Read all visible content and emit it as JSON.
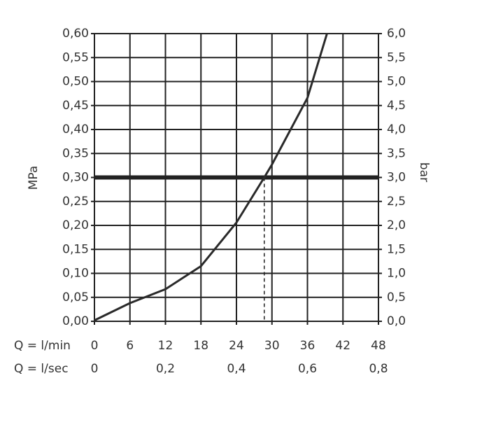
{
  "chart_data": {
    "type": "line",
    "x_label": "Q = l/min",
    "x2_label": "Q = l/sec",
    "y_label": "MPa",
    "y2_label": "bar",
    "x": [
      0,
      6,
      12,
      18,
      24,
      28.7,
      30,
      36,
      39.3
    ],
    "series": [
      {
        "color": "#2a2a2a",
        "values": [
          0.002,
          0.038,
          0.067,
          0.115,
          0.206,
          0.3,
          0.327,
          0.466,
          0.6
        ]
      }
    ],
    "xlim": [
      0,
      48
    ],
    "xticks": [
      0,
      6,
      12,
      18,
      24,
      30,
      36,
      42,
      48
    ],
    "x2lim": [
      0,
      0.8
    ],
    "x2ticks": [
      {
        "value": 0,
        "label": "0"
      },
      {
        "value": 0.2,
        "label": "0,2"
      },
      {
        "value": 0.4,
        "label": "0,4"
      },
      {
        "value": 0.6,
        "label": "0,6"
      },
      {
        "value": 0.8,
        "label": "0,8"
      }
    ],
    "ylim": [
      0,
      0.6
    ],
    "yticks": [
      {
        "value": 0,
        "label": "0,00"
      },
      {
        "value": 0.05,
        "label": "0,05"
      },
      {
        "value": 0.1,
        "label": "0,10"
      },
      {
        "value": 0.15,
        "label": "0,15"
      },
      {
        "value": 0.2,
        "label": "0,20"
      },
      {
        "value": 0.25,
        "label": "0,25"
      },
      {
        "value": 0.3,
        "label": "0,30"
      },
      {
        "value": 0.35,
        "label": "0,35"
      },
      {
        "value": 0.4,
        "label": "0,40"
      },
      {
        "value": 0.45,
        "label": "0,45"
      },
      {
        "value": 0.5,
        "label": "0,50"
      },
      {
        "value": 0.55,
        "label": "0,55"
      },
      {
        "value": 0.6,
        "label": "0,60"
      }
    ],
    "y2lim": [
      0,
      6
    ],
    "y2ticks": [
      {
        "value": 0,
        "label": "0,0"
      },
      {
        "value": 0.5,
        "label": "0,5"
      },
      {
        "value": 1,
        "label": "1,0"
      },
      {
        "value": 1.5,
        "label": "1,5"
      },
      {
        "value": 2,
        "label": "2,0"
      },
      {
        "value": 2.5,
        "label": "2,5"
      },
      {
        "value": 3,
        "label": "3,0"
      },
      {
        "value": 3.5,
        "label": "3,5"
      },
      {
        "value": 4,
        "label": "4,0"
      },
      {
        "value": 4.5,
        "label": "4,5"
      },
      {
        "value": 5,
        "label": "5,0"
      },
      {
        "value": 5.5,
        "label": "5,5"
      },
      {
        "value": 6,
        "label": "6,0"
      }
    ],
    "reference_line_y": 0.3,
    "operating_point_x": 28.7,
    "grid": true
  }
}
